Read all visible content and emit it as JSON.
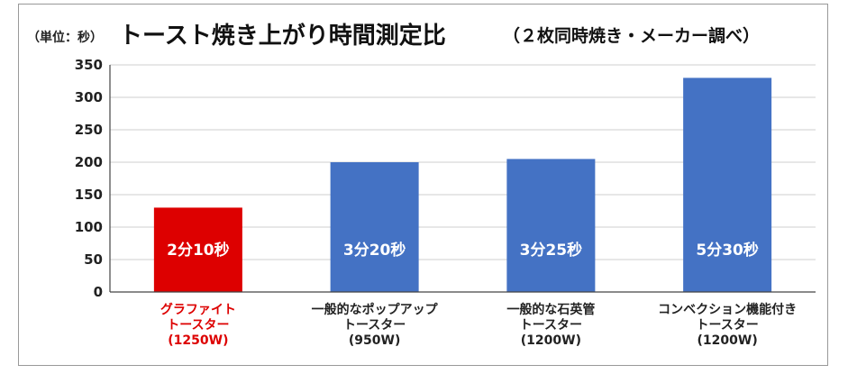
{
  "header": {
    "unit": "（単位：秒）",
    "title": "トースト焼き上がり時間測定比",
    "subtitle": "（２枚同時焼き・メーカー調べ）"
  },
  "colors": {
    "highlight": "#dd0000",
    "bar": "#4472c4",
    "grid": "#cfcfcf",
    "axis": "#444444",
    "text": "#222222"
  },
  "chart_data": {
    "type": "bar",
    "title": "トースト焼き上がり時間測定比",
    "subtitle": "（２枚同時焼き・メーカー調べ）",
    "unit": "（単位：秒）",
    "ylim": [
      0,
      350
    ],
    "yticks": [
      0,
      50,
      100,
      150,
      200,
      250,
      300,
      350
    ],
    "grid": true,
    "categories": [
      [
        "グラファイト",
        "トースター",
        "(1250W)"
      ],
      [
        "一般的なポップアップ",
        "トースター",
        "(950W)"
      ],
      [
        "一般的な石英管",
        "トースター",
        "(1200W)"
      ],
      [
        "コンベクション機能付き",
        "トースター",
        "(1200W)"
      ]
    ],
    "values": [
      130,
      200,
      205,
      330
    ],
    "data_labels": [
      "2分10秒",
      "3分20秒",
      "3分25秒",
      "5分30秒"
    ],
    "highlight_index": 0
  }
}
